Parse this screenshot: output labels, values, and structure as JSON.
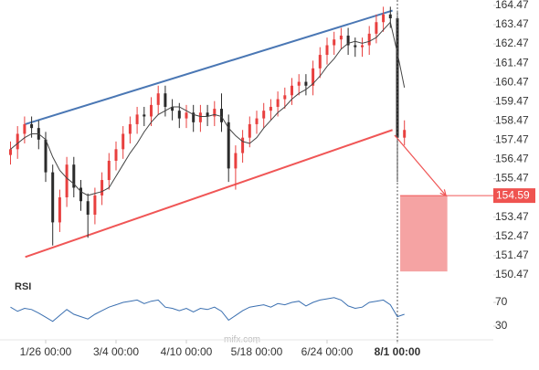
{
  "chart_data": {
    "type": "candlestick",
    "categories": [
      null,
      null,
      null,
      null,
      null,
      "1/26 00:00",
      null,
      null,
      null,
      null,
      null,
      null,
      null,
      null,
      null,
      "3/4 00:00",
      null,
      null,
      null,
      null,
      null,
      null,
      null,
      null,
      null,
      "4/10 00:00",
      null,
      null,
      null,
      null,
      null,
      null,
      null,
      null,
      null,
      "5/18 00:00",
      null,
      null,
      null,
      null,
      null,
      null,
      null,
      null,
      null,
      "6/24 00:00",
      null,
      null,
      null,
      null,
      null,
      null,
      null,
      null,
      null,
      "8/1 00:00",
      null
    ],
    "open": [
      156.7,
      157.0,
      157.8,
      158.3,
      158.1,
      157.5,
      155.8,
      153.2,
      154.5,
      156.2,
      155.0,
      154.3,
      153.6,
      154.6,
      155.4,
      156.4,
      157.0,
      157.8,
      158.3,
      158.8,
      158.7,
      159.3,
      159.9,
      159.2,
      159.0,
      158.6,
      158.9,
      158.4,
      158.9,
      158.7,
      159.1,
      158.4,
      156.0,
      156.8,
      157.6,
      158.3,
      158.6,
      159.0,
      159.2,
      159.6,
      159.8,
      160.3,
      160.5,
      160.3,
      161.2,
      161.9,
      162.4,
      162.7,
      162.9,
      162.4,
      162.3,
      162.4,
      163.0,
      163.6,
      164.0,
      163.8,
      157.6
    ],
    "high": [
      157.4,
      158.2,
      158.7,
      158.7,
      158.5,
      157.9,
      156.2,
      154.9,
      156.6,
      156.6,
      155.4,
      154.7,
      155.0,
      155.8,
      156.8,
      157.4,
      158.2,
      158.7,
      159.2,
      159.2,
      159.7,
      160.3,
      160.3,
      159.6,
      159.4,
      159.3,
      159.3,
      159.3,
      159.3,
      159.5,
      159.9,
      158.8,
      157.2,
      158.0,
      158.7,
      159.0,
      159.4,
      159.6,
      160.0,
      160.2,
      160.7,
      160.9,
      160.9,
      161.6,
      162.3,
      162.8,
      163.1,
      163.3,
      163.3,
      162.8,
      162.8,
      163.4,
      164.0,
      164.4,
      164.4,
      164.2,
      158.5
    ],
    "low": [
      156.2,
      156.5,
      157.3,
      157.6,
      157.0,
      155.3,
      152.0,
      152.7,
      154.0,
      154.5,
      153.8,
      152.4,
      153.1,
      154.1,
      154.9,
      155.9,
      156.5,
      157.3,
      157.8,
      158.2,
      158.2,
      158.8,
      158.7,
      158.5,
      158.1,
      158.1,
      157.9,
      157.9,
      158.2,
      158.2,
      157.9,
      155.3,
      154.9,
      156.3,
      157.1,
      157.8,
      158.1,
      158.5,
      158.7,
      159.1,
      159.3,
      159.8,
      159.8,
      159.8,
      160.7,
      161.4,
      161.9,
      162.2,
      161.9,
      161.8,
      161.8,
      161.9,
      162.5,
      163.1,
      163.3,
      155.3,
      157.2
    ],
    "close": [
      157.0,
      157.8,
      158.3,
      158.1,
      157.5,
      155.8,
      153.2,
      154.5,
      156.2,
      155.0,
      154.3,
      153.6,
      154.6,
      155.4,
      156.4,
      157.0,
      157.8,
      158.3,
      158.8,
      158.7,
      159.3,
      159.9,
      159.2,
      159.0,
      158.6,
      158.9,
      158.4,
      158.9,
      158.7,
      159.1,
      158.4,
      156.0,
      156.8,
      157.6,
      158.3,
      158.6,
      159.0,
      159.2,
      159.6,
      159.8,
      160.3,
      160.5,
      160.3,
      161.2,
      161.9,
      162.4,
      162.7,
      162.9,
      162.4,
      162.3,
      162.4,
      163.0,
      163.6,
      164.0,
      163.8,
      157.6,
      158.0
    ],
    "ma": [
      157.0,
      157.3,
      157.6,
      157.8,
      157.8,
      157.5,
      156.6,
      155.9,
      155.5,
      155.2,
      154.8,
      154.6,
      154.7,
      154.8,
      155.0,
      155.6,
      156.2,
      156.8,
      157.3,
      157.9,
      158.4,
      158.8,
      159.0,
      159.2,
      159.2,
      159.0,
      158.8,
      158.7,
      158.7,
      158.8,
      158.7,
      158.1,
      157.7,
      157.4,
      157.3,
      157.6,
      158.1,
      158.5,
      158.9,
      159.2,
      159.6,
      159.9,
      160.1,
      160.4,
      160.8,
      161.3,
      161.7,
      162.2,
      162.5,
      162.6,
      162.5,
      162.6,
      162.8,
      163.2,
      163.6,
      162.0,
      160.2
    ],
    "up_color": "#e8403f",
    "down_color": "#2b2b2b",
    "ma_color": "#444444",
    "ylim": [
      150.04,
      164.75
    ],
    "yticks": [
      164.47,
      163.47,
      162.47,
      161.47,
      160.47,
      159.47,
      158.47,
      157.47,
      156.47,
      155.47,
      153.47,
      152.47,
      151.47,
      150.47
    ],
    "upper_trendline": {
      "x": [
        2.1,
        54.3
      ],
      "y": [
        158.3,
        164.2
      ],
      "color": "#4a77b4"
    },
    "lower_trendline": {
      "x": [
        2.1,
        54.3
      ],
      "y": [
        151.4,
        158.0
      ],
      "color": "#f05656"
    },
    "arrow": {
      "x": [
        54.6,
        61.9
      ],
      "y": [
        157.73
      ],
      "color": "#f05656"
    },
    "target": 154.59,
    "target_zone": {
      "x": [
        55.4,
        62.1
      ],
      "low": 150.65,
      "color": "#f5a3a3"
    },
    "rsi_label": "RSI",
    "rsi": [
      62,
      55,
      60,
      58,
      52,
      45,
      38,
      48,
      58,
      50,
      46,
      42,
      50,
      56,
      62,
      66,
      70,
      72,
      74,
      68,
      72,
      74,
      62,
      60,
      56,
      60,
      54,
      60,
      58,
      62,
      55,
      40,
      48,
      56,
      62,
      64,
      66,
      62,
      68,
      66,
      70,
      72,
      64,
      70,
      74,
      76,
      78,
      74,
      64,
      60,
      62,
      70,
      72,
      74,
      66,
      46,
      50
    ],
    "rsi_color": "#3a6fb0",
    "rsi_ylim": [
      11.5,
      100.8
    ],
    "rsi_yticks": [
      70,
      30
    ],
    "watermark": "mifx.com"
  }
}
